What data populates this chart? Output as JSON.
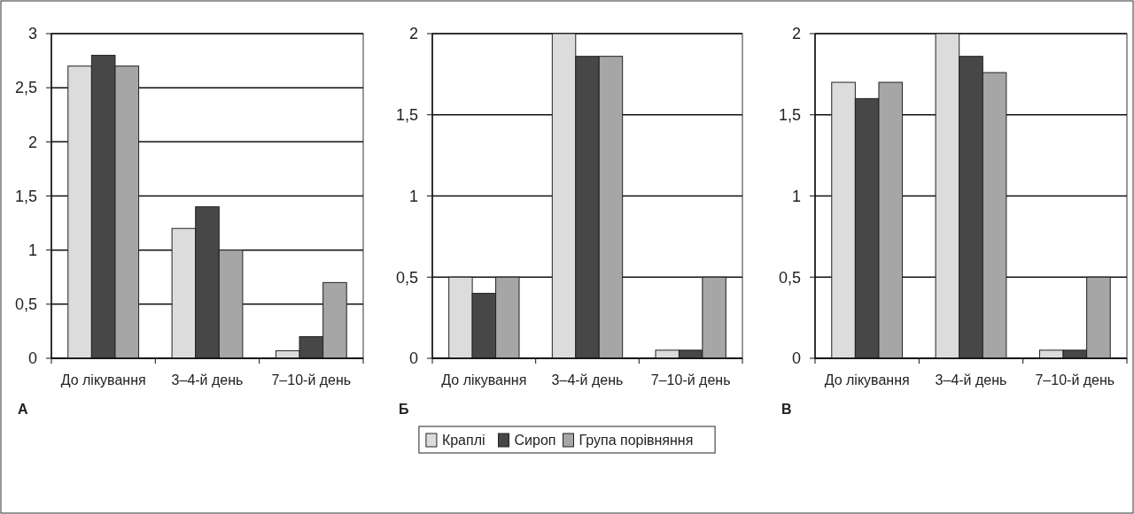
{
  "chart_data": [
    {
      "type": "bar",
      "title": "А",
      "categories": [
        "До лікування",
        "3–4-й день",
        "7–10-й день"
      ],
      "series": [
        {
          "color": "#dcdcdc",
          "values": [
            2.7,
            1.2,
            0.07
          ]
        },
        {
          "color": "#474747",
          "values": [
            2.8,
            1.4,
            0.2
          ]
        },
        {
          "color": "#a6a6a6",
          "values": [
            2.7,
            1.0,
            0.7
          ]
        }
      ],
      "ylim": [
        0,
        3
      ],
      "yticks": [
        0,
        {
          "value": 0.5,
          "label": "0,5"
        },
        1,
        {
          "value": 1.5,
          "label": "1,5"
        },
        2,
        {
          "value": 2.5,
          "label": "2,5"
        },
        3
      ],
      "grid": "y"
    },
    {
      "type": "bar",
      "title": "Б",
      "categories": [
        "До лікування",
        "3–4-й день",
        "7–10-й день"
      ],
      "series": [
        {
          "name": "Краплі",
          "color": "#dcdcdc",
          "values": [
            0.5,
            2.0,
            0.05
          ]
        },
        {
          "name": "Сироп",
          "color": "#474747",
          "values": [
            0.4,
            1.86,
            0.05
          ]
        },
        {
          "name": "Група порівняння",
          "color": "#a6a6a6",
          "values": [
            0.5,
            1.86,
            0.5
          ]
        }
      ],
      "ylim": [
        0,
        2
      ],
      "yticks": [
        0,
        {
          "value": 0.5,
          "label": "0,5"
        },
        1,
        {
          "value": 1.5,
          "label": "1,5"
        },
        2
      ],
      "grid": "y",
      "legend": "bottom"
    },
    {
      "type": "bar",
      "title": "В",
      "categories": [
        "До лікування",
        "3–4-й день",
        "7–10-й день"
      ],
      "series": [
        {
          "color": "#dcdcdc",
          "values": [
            1.7,
            2.0,
            0.05
          ]
        },
        {
          "color": "#474747",
          "values": [
            1.6,
            1.86,
            0.05
          ]
        },
        {
          "color": "#a6a6a6",
          "values": [
            1.7,
            1.76,
            0.5
          ]
        }
      ],
      "ylim": [
        0,
        2
      ],
      "yticks": [
        0,
        {
          "value": 0.5,
          "label": "0,5"
        },
        1,
        {
          "value": 1.5,
          "label": "1,5"
        },
        2
      ],
      "grid": "y"
    }
  ]
}
